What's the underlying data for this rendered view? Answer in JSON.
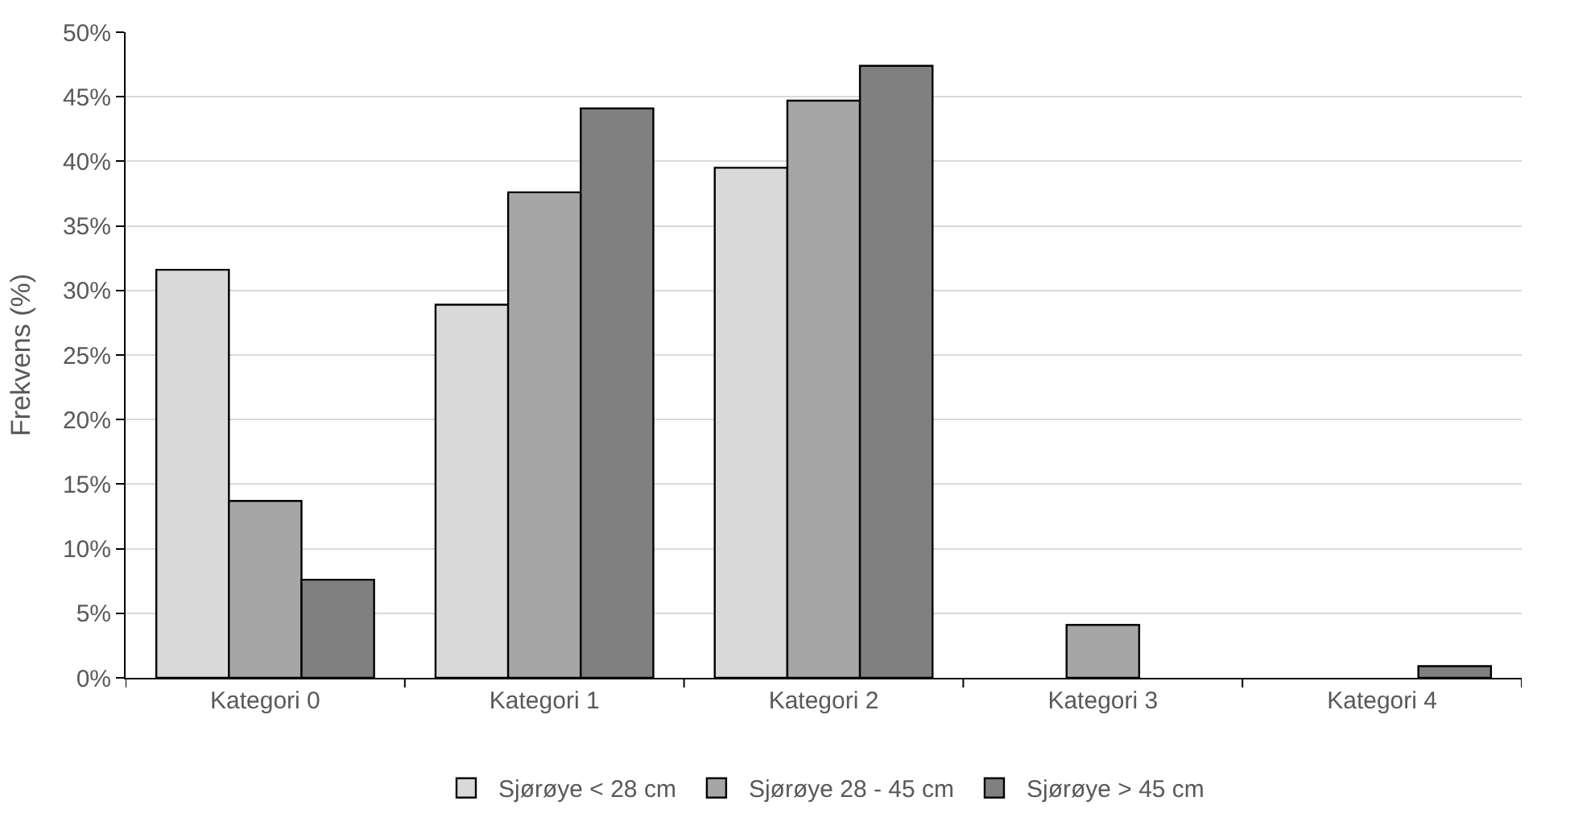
{
  "chart_data": {
    "type": "bar",
    "ylabel": "Frekvens (%)",
    "categories": [
      "Kategori 0",
      "Kategori 1",
      "Kategori 2",
      "Kategori 3",
      "Kategori 4"
    ],
    "series": [
      {
        "name": "Sjørøye < 28 cm",
        "color": "#d9d9d9",
        "values": [
          31.6,
          28.9,
          39.5,
          0,
          0
        ]
      },
      {
        "name": "Sjørøye 28 - 45 cm",
        "color": "#a6a6a6",
        "values": [
          13.7,
          37.6,
          44.7,
          4.1,
          0
        ]
      },
      {
        "name": "Sjørøye > 45 cm",
        "color": "#808080",
        "values": [
          7.6,
          44.1,
          47.4,
          0,
          0.9
        ]
      }
    ],
    "ylim": [
      0,
      50
    ],
    "yticks": [
      {
        "value": 0,
        "label": "0%"
      },
      {
        "value": 5,
        "label": "5%"
      },
      {
        "value": 10,
        "label": "10%"
      },
      {
        "value": 15,
        "label": "15%"
      },
      {
        "value": 20,
        "label": "20%"
      },
      {
        "value": 25,
        "label": "25%"
      },
      {
        "value": 30,
        "label": "30%"
      },
      {
        "value": 35,
        "label": "35%"
      },
      {
        "value": 40,
        "label": "40%"
      },
      {
        "value": 45,
        "label": "45%"
      },
      {
        "value": 50,
        "label": "50%"
      }
    ],
    "grid": "y",
    "legend": "bottom"
  }
}
